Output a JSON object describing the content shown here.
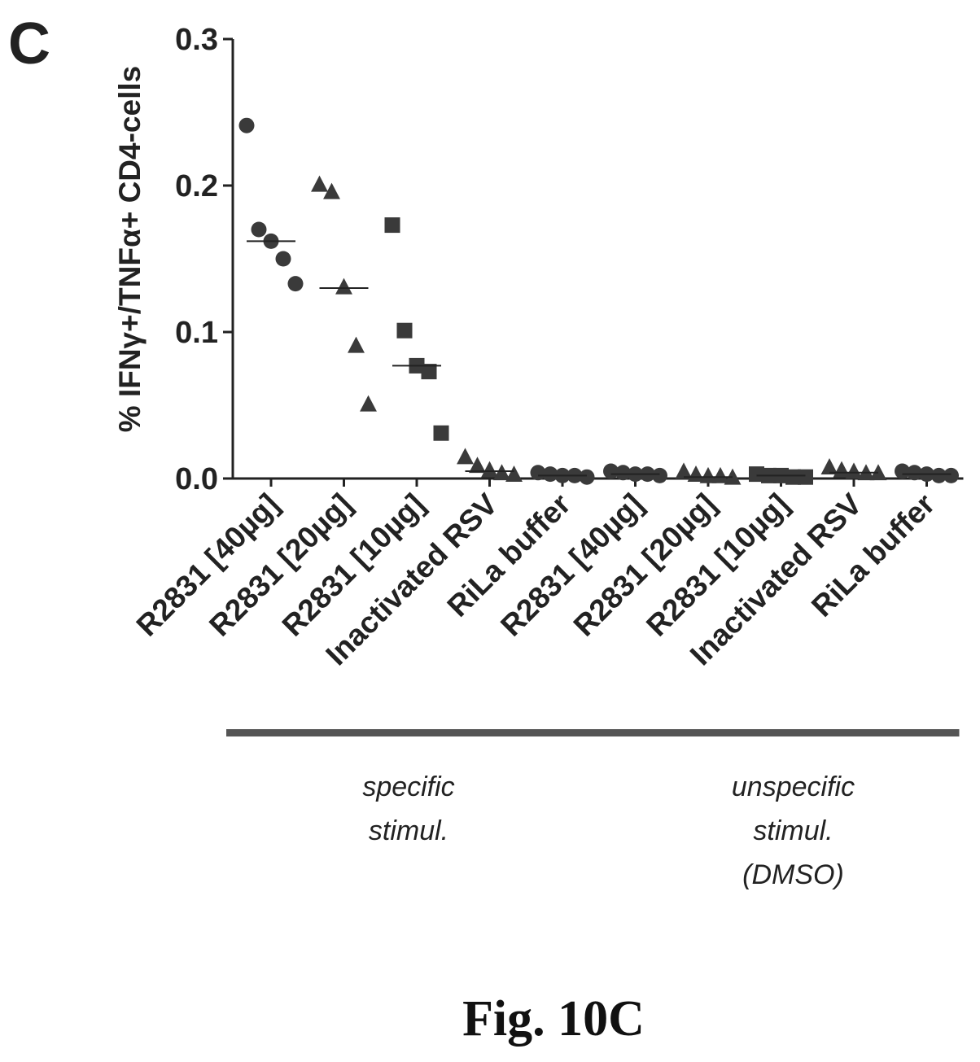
{
  "panel_label": "C",
  "figure_caption": "Fig. 10C",
  "colors": {
    "marker": "#3a3a3a",
    "axis": "#222222",
    "group_bar": "#555555"
  },
  "chart_data": {
    "type": "scatter",
    "ylabel": "% IFNγ+/TNFα+ CD4-cells",
    "ylim": [
      0,
      0.3
    ],
    "yticks": [
      0.0,
      0.1,
      0.2,
      0.3
    ],
    "ytick_labels": [
      "0.0",
      "0.1",
      "0.2",
      "0.3"
    ],
    "grid": false,
    "categories": [
      "R2831 [40µg]",
      "R2831 [20µg]",
      "R2831 [10µg]",
      "Inactivated RSV",
      "RiLa buffer",
      "R2831 [40µg]",
      "R2831 [20µg]",
      "R2831 [10µg]",
      "Inactivated RSV",
      "RiLa buffer"
    ],
    "groups": [
      {
        "label_lines": [
          "specific",
          "stimul."
        ],
        "categories": [
          0,
          1,
          2,
          3,
          4
        ]
      },
      {
        "label_lines": [
          "unspecific",
          "stimul.",
          "(DMSO)"
        ],
        "categories": [
          5,
          6,
          7,
          8,
          9
        ]
      }
    ],
    "series": [
      {
        "category": 0,
        "marker": "circle",
        "values": [
          0.241,
          0.17,
          0.162,
          0.15,
          0.133
        ],
        "median": 0.162
      },
      {
        "category": 1,
        "marker": "triangle",
        "values": [
          0.2,
          0.195,
          0.13,
          0.09,
          0.05
        ],
        "median": 0.13
      },
      {
        "category": 2,
        "marker": "square",
        "values": [
          0.173,
          0.101,
          0.077,
          0.073,
          0.031
        ],
        "median": 0.077
      },
      {
        "category": 3,
        "marker": "triangle",
        "values": [
          0.014,
          0.008,
          0.005,
          0.003,
          0.002
        ],
        "median": 0.005
      },
      {
        "category": 4,
        "marker": "circle",
        "values": [
          0.004,
          0.003,
          0.002,
          0.002,
          0.001
        ],
        "median": 0.002
      },
      {
        "category": 5,
        "marker": "circle",
        "values": [
          0.005,
          0.004,
          0.003,
          0.003,
          0.002
        ],
        "median": 0.003
      },
      {
        "category": 6,
        "marker": "triangle",
        "values": [
          0.004,
          0.002,
          0.001,
          0.001,
          0.0
        ],
        "median": 0.001
      },
      {
        "category": 7,
        "marker": "square",
        "values": [
          0.003,
          0.002,
          0.002,
          0.001,
          0.001
        ],
        "median": 0.002
      },
      {
        "category": 8,
        "marker": "triangle",
        "values": [
          0.007,
          0.005,
          0.004,
          0.003,
          0.003
        ],
        "median": 0.004
      },
      {
        "category": 9,
        "marker": "circle",
        "values": [
          0.005,
          0.004,
          0.003,
          0.002,
          0.002
        ],
        "median": 0.003
      }
    ]
  }
}
